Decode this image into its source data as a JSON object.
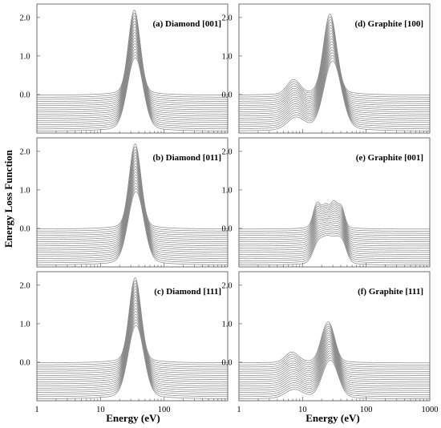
{
  "chart_data": {
    "type": "line",
    "layout": "3 rows x 2 columns, small multiples, shared axes",
    "xlabel": "Energy (eV)",
    "ylabel": "Energy Loss Function",
    "xscale": "log",
    "xlim": [
      1,
      1000
    ],
    "x_ticks": [
      "1",
      "10",
      "100",
      "1000"
    ],
    "y_ticks": [
      "0.0",
      "1.0",
      "2.0"
    ],
    "ylim": [
      -1.0,
      2.35
    ],
    "grid": false,
    "legend": "none",
    "curves_per_panel": 18,
    "curve_offset_step": 0.055,
    "panels": [
      {
        "label": "(a) Diamond [001]",
        "row": 0,
        "col": 0,
        "peaks": [
          {
            "x": 34,
            "w": 0.09,
            "a": 2.05
          }
        ],
        "shift": 0.002
      },
      {
        "label": "(d) Graphite [100]",
        "row": 0,
        "col": 1,
        "peaks": [
          {
            "x": 7.2,
            "w": 0.1,
            "a": 0.35
          },
          {
            "x": 27,
            "w": 0.1,
            "a": 1.95
          }
        ],
        "shift": 0.006
      },
      {
        "label": "(b) Diamond [011]",
        "row": 1,
        "col": 0,
        "peaks": [
          {
            "x": 35,
            "w": 0.09,
            "a": 2.05
          }
        ],
        "shift": 0.002
      },
      {
        "label": "(e) Graphite [001]",
        "row": 1,
        "col": 1,
        "peaks": [
          {
            "x": 17,
            "w": 0.06,
            "a": 0.6
          },
          {
            "x": 23,
            "w": 0.05,
            "a": 0.45
          },
          {
            "x": 31,
            "w": 0.06,
            "a": 0.6
          },
          {
            "x": 41,
            "w": 0.05,
            "a": 0.45
          }
        ],
        "shift": 0.003
      },
      {
        "label": "(c) Diamond [111]",
        "row": 2,
        "col": 0,
        "peaks": [
          {
            "x": 35,
            "w": 0.09,
            "a": 2.05
          }
        ],
        "shift": 0.002
      },
      {
        "label": "(f) Graphite [111]",
        "row": 2,
        "col": 1,
        "peaks": [
          {
            "x": 6.8,
            "w": 0.1,
            "a": 0.25
          },
          {
            "x": 22,
            "w": 0.08,
            "a": 0.55
          },
          {
            "x": 28,
            "w": 0.08,
            "a": 0.65
          }
        ],
        "shift": 0.005
      }
    ]
  },
  "colors": {
    "curve": "#8a8a8a",
    "frame": "#6f6f6f",
    "text": "#000000",
    "background": "#ffffff"
  }
}
